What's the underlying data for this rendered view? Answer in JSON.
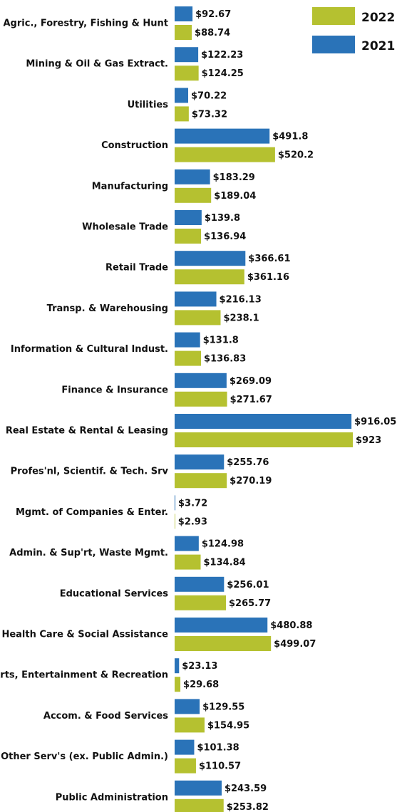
{
  "chart_data": {
    "type": "bar",
    "orientation": "horizontal",
    "categories": [
      "Agric., Forestry, Fishing & Hunt",
      "Mining & Oil & Gas Extract.",
      "Utilities",
      "Construction",
      "Manufacturing",
      "Wholesale Trade",
      "Retail Trade",
      "Transp. & Warehousing",
      "Information & Cultural Indust.",
      "Finance & Insurance",
      "Real Estate & Rental & Leasing",
      "Profes'nl, Scientif. & Tech. Srv",
      "Mgmt. of Companies & Enter.",
      "Admin. & Sup'rt, Waste Mgmt.",
      "Educational Services",
      "Health Care & Social Assistance",
      "Arts, Entertainment & Recreation",
      "Accom. & Food Services",
      "Other Serv's (ex. Public Admin.)",
      "Public Administration"
    ],
    "series": [
      {
        "name": "2021",
        "color": "#2a73b8",
        "values": [
          92.67,
          122.23,
          70.22,
          491.8,
          183.29,
          139.8,
          366.61,
          216.13,
          131.8,
          269.09,
          916.05,
          255.76,
          3.72,
          124.98,
          256.01,
          480.88,
          23.13,
          129.55,
          101.38,
          243.59
        ],
        "value_labels": [
          "$92.67",
          "$122.23",
          "$70.22",
          "$491.8",
          "$183.29",
          "$139.8",
          "$366.61",
          "$216.13",
          "$131.8",
          "$269.09",
          "$916.05",
          "$255.76",
          "$3.72",
          "$124.98",
          "$256.01",
          "$480.88",
          "$23.13",
          "$129.55",
          "$101.38",
          "$243.59"
        ]
      },
      {
        "name": "2022",
        "color": "#b5c130",
        "values": [
          88.74,
          124.25,
          73.32,
          520.2,
          189.04,
          136.94,
          361.16,
          238.1,
          136.83,
          271.67,
          923,
          270.19,
          2.93,
          134.84,
          265.77,
          499.07,
          29.68,
          154.95,
          110.57,
          253.82
        ],
        "value_labels": [
          "$88.74",
          "$124.25",
          "$73.32",
          "$520.2",
          "$189.04",
          "$136.94",
          "$361.16",
          "$238.1",
          "$136.83",
          "$271.67",
          "$923",
          "$270.19",
          "$2.93",
          "$134.84",
          "$265.77",
          "$499.07",
          "$29.68",
          "$154.95",
          "$110.57",
          "$253.82"
        ]
      }
    ],
    "legend": "top-right"
  }
}
